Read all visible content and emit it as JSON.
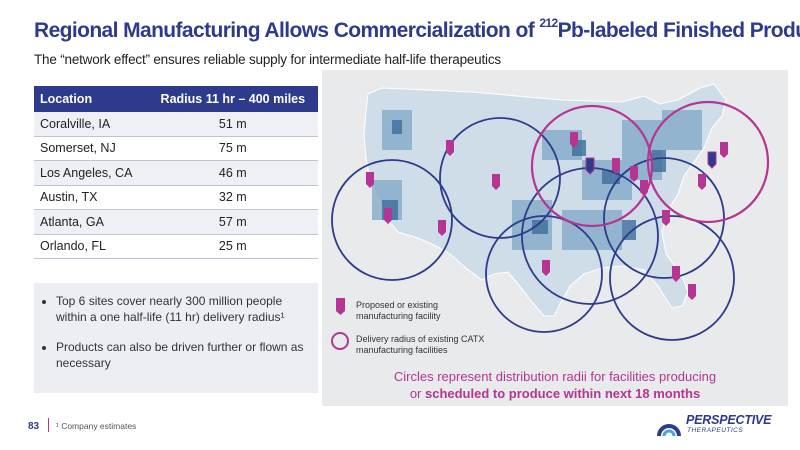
{
  "slide": {
    "title_prefix": "Regional Manufacturing Allows Commercialization of ",
    "title_sup": "212",
    "title_suffix": "Pb-labeled Finished Products",
    "subtitle": "The “network effect” ensures reliable supply for intermediate half-life therapeutics",
    "page_number": "83",
    "footnote": "¹ Company estimates"
  },
  "table": {
    "headers": [
      "Location",
      "Radius 11 hr – 400 miles"
    ],
    "rows": [
      {
        "location": "Coralville, IA",
        "population": "51 m"
      },
      {
        "location": "Somerset, NJ",
        "population": "75 m"
      },
      {
        "location": "Los Angeles, CA",
        "population": "46 m"
      },
      {
        "location": "Austin, TX",
        "population": "32 m"
      },
      {
        "location": "Atlanta, GA",
        "population": "57 m"
      },
      {
        "location": "Orlando, FL",
        "population": "25 m"
      }
    ]
  },
  "bullets": [
    "Top 6 sites cover nearly 300 million people within a one half-life (11 hr) delivery radius¹",
    "Products can also be driven further or flown as necessary"
  ],
  "legend": {
    "facility_label": "Proposed or existing manufacturing facility",
    "radius_label": "Delivery radius of existing CATX manufacturing facilities"
  },
  "caption": {
    "line1": "Circles represent distribution radii for facilities producing",
    "line2_prefix": "or ",
    "line2_bold": "scheduled to produce within next 18 months"
  },
  "logo": {
    "name": "PERSPECTIVE",
    "sub": "THERAPEUTICS"
  },
  "colors": {
    "brand_blue": "#2e3a8c",
    "magenta": "#b43592",
    "circle_navy": "#2e3a8c"
  }
}
